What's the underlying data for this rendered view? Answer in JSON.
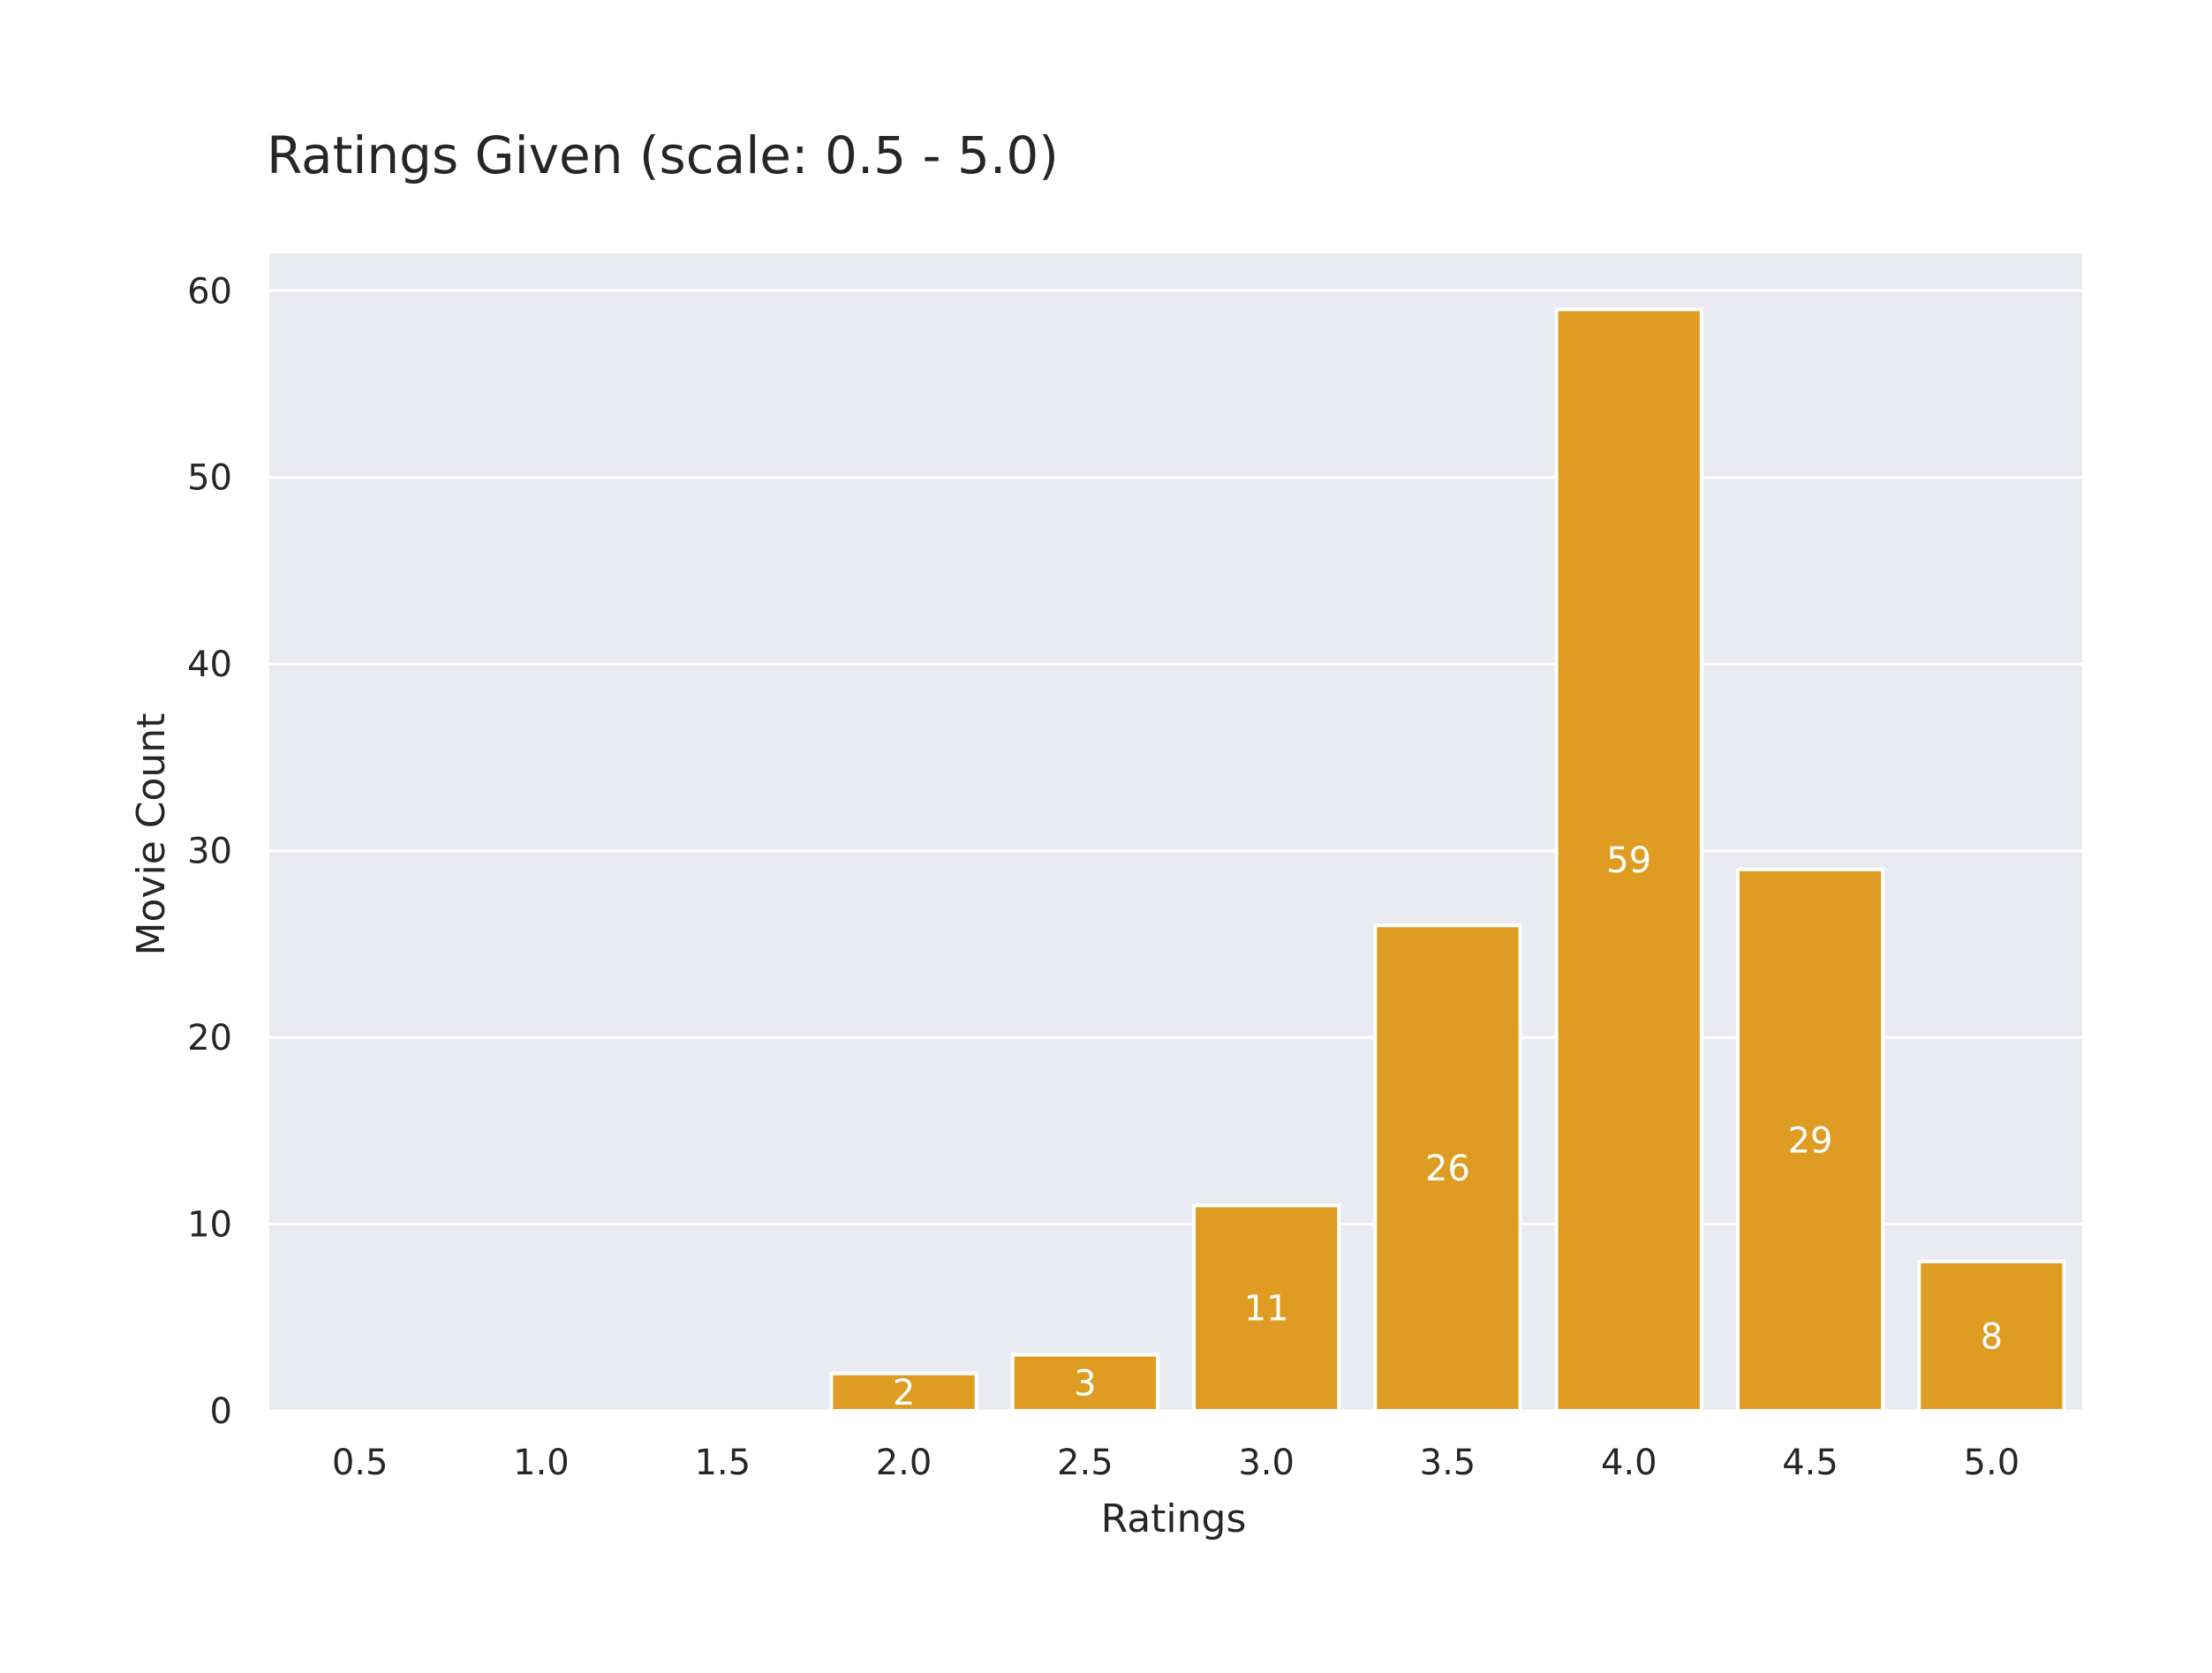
{
  "chart_data": {
    "type": "bar",
    "title": "Ratings Given (scale: 0.5 - 5.0)",
    "xlabel": "Ratings",
    "ylabel": "Movie Count",
    "categories": [
      "0.5",
      "1.0",
      "1.5",
      "2.0",
      "2.5",
      "3.0",
      "3.5",
      "4.0",
      "4.5",
      "5.0"
    ],
    "values": [
      0,
      0,
      0,
      2,
      3,
      11,
      26,
      59,
      29,
      8
    ],
    "data_labels": [
      "",
      "",
      "",
      "2",
      "3",
      "11",
      "26",
      "59",
      "29",
      "8"
    ],
    "ylim": [
      0,
      62
    ],
    "yticks": [
      0,
      10,
      20,
      30,
      40,
      50,
      60
    ],
    "grid": true,
    "legend": "none",
    "colors": {
      "bar": "#DF9C22",
      "plot_background": "#EAEAF2",
      "grid": "#FFFFFF",
      "text": "#262626",
      "data_label": "#FFFFFF"
    }
  }
}
